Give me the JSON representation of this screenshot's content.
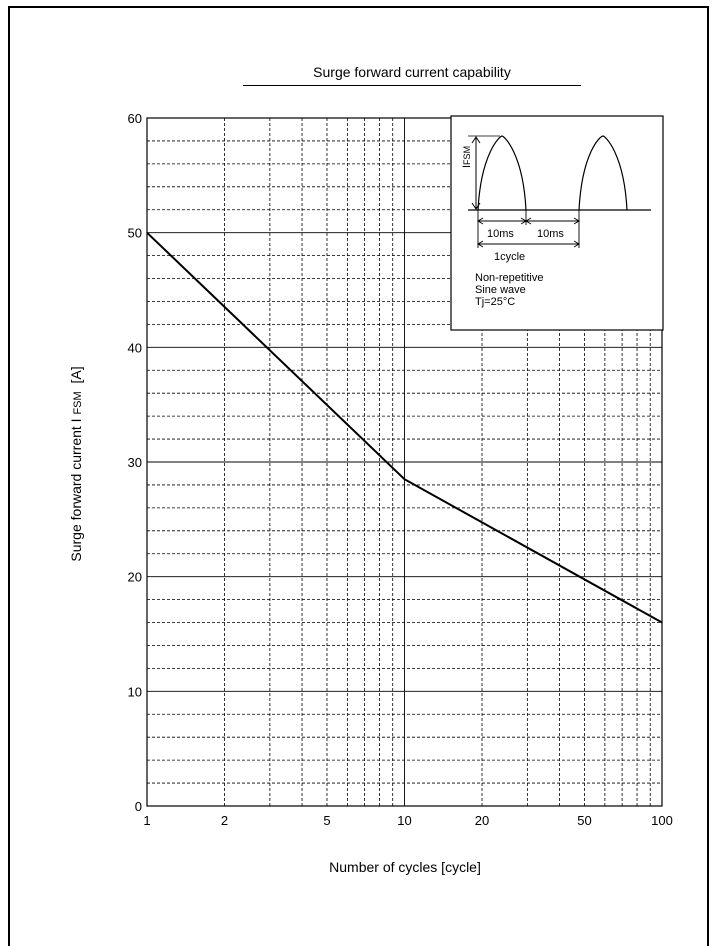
{
  "chart_data": {
    "type": "line",
    "title": "Surge forward current capability",
    "xlabel": "Number of cycles  [cycle]",
    "ylabel": "Surge forward  current  I",
    "ylabel_sub": "FSM",
    "ylabel_unit": "[A]",
    "x_scale": "log",
    "xlim": [
      1,
      100
    ],
    "ylim": [
      0,
      60
    ],
    "x_ticks": [
      1,
      2,
      5,
      10,
      20,
      50,
      100
    ],
    "x_tick_labels": [
      "1",
      "2",
      "5",
      "10",
      "20",
      "50",
      "100"
    ],
    "y_ticks": [
      0,
      10,
      20,
      30,
      40,
      50,
      60
    ],
    "y_tick_labels": [
      "0",
      "10",
      "20",
      "30",
      "40",
      "50",
      "60"
    ],
    "grid": true,
    "series": [
      {
        "x": [
          1,
          10,
          100
        ],
        "y": [
          50,
          28.5,
          16
        ]
      }
    ],
    "inset": {
      "ifsm_label": "I",
      "ifsm_sub": "FSM",
      "dim1": "10ms",
      "dim2": "10ms",
      "cycle": "1cycle",
      "note_lines": [
        "Non-repetitive",
        "Sine wave",
        "Tj=25°C"
      ]
    }
  }
}
